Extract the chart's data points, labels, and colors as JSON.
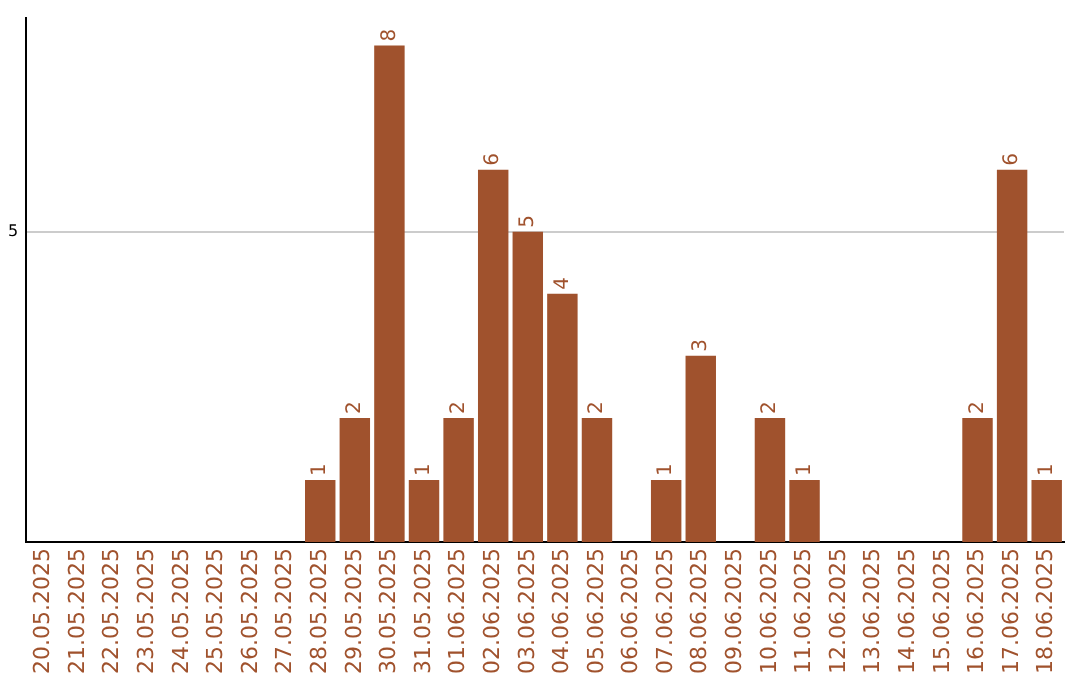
{
  "chart_data": {
    "type": "bar",
    "categories": [
      "20.05.2025",
      "21.05.2025",
      "22.05.2025",
      "23.05.2025",
      "24.05.2025",
      "25.05.2025",
      "26.05.2025",
      "27.05.2025",
      "28.05.2025",
      "29.05.2025",
      "30.05.2025",
      "31.05.2025",
      "01.06.2025",
      "02.06.2025",
      "03.06.2025",
      "04.06.2025",
      "05.06.2025",
      "06.06.2025",
      "07.06.2025",
      "08.06.2025",
      "09.06.2025",
      "10.06.2025",
      "11.06.2025",
      "12.06.2025",
      "13.06.2025",
      "14.06.2025",
      "15.06.2025",
      "16.06.2025",
      "17.06.2025",
      "18.06.2025"
    ],
    "values": [
      0,
      0,
      0,
      0,
      0,
      0,
      0,
      0,
      1,
      2,
      8,
      1,
      2,
      6,
      5,
      4,
      2,
      0,
      1,
      3,
      0,
      2,
      1,
      0,
      0,
      0,
      0,
      2,
      6,
      1
    ],
    "value_labels": [
      null,
      null,
      null,
      null,
      null,
      null,
      null,
      null,
      "1",
      "2",
      "8",
      "1",
      "2",
      "6",
      "5",
      "4",
      "2",
      null,
      "1",
      "3",
      null,
      "2",
      "1",
      null,
      null,
      null,
      null,
      "2",
      "6",
      "1"
    ],
    "color": "#a0522d",
    "ylim": [
      0,
      8.45
    ],
    "yticks": [
      5
    ],
    "grid": "y"
  }
}
